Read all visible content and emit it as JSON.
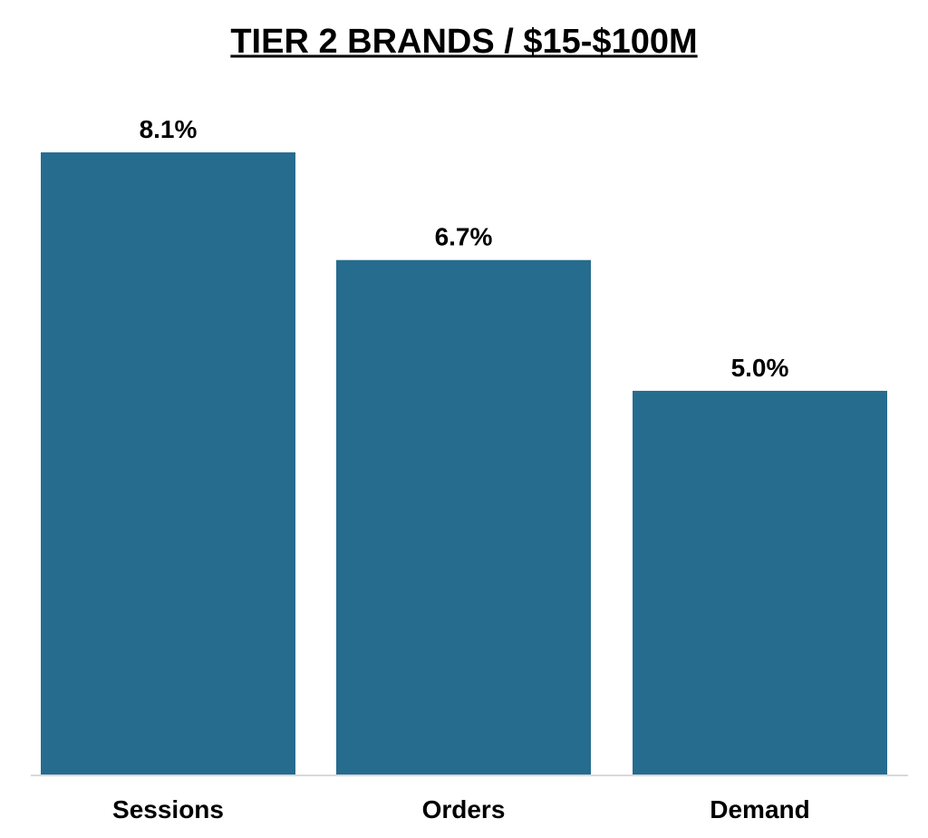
{
  "chart_data": {
    "type": "bar",
    "title": "TIER 2 BRANDS / $15-$100M",
    "categories": [
      "Sessions",
      "Orders",
      "Demand"
    ],
    "values": [
      8.1,
      6.7,
      5.0
    ],
    "data_labels": [
      "8.1%",
      "6.7%",
      "5.0%"
    ],
    "xlabel": "",
    "ylabel": "",
    "ylim": [
      0,
      8.1
    ],
    "grid": false,
    "legend": "none",
    "colors": {
      "bar": "#266c8f",
      "baseline": "#d9d9d9",
      "text": "#000000"
    }
  }
}
